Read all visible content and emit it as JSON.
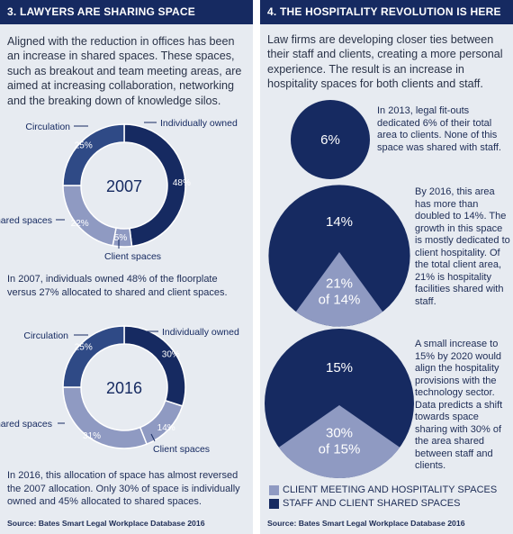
{
  "colors": {
    "navy": "#162a61",
    "mid": "#2f4a86",
    "light": "#8f9ac2",
    "white": "#ffffff"
  },
  "left": {
    "header": "3. LAWYERS ARE SHARING SPACE",
    "intro": "Aligned with the reduction in offices has been an increase in shared spaces. These spaces, such as breakout and team meeting areas, are aimed at increasing collaboration, networking and the breaking down of knowledge silos.",
    "caption_2007": "In 2007, individuals owned 48% of the floorplate versus 27% allocated to shared and client spaces.",
    "caption_2016": "In 2016, this allocation of space has almost reversed the 2007 allocation. Only 30% of space is individually owned and 45% allocated to shared spaces.",
    "source": "Source: Bates Smart Legal Workplace Database 2016"
  },
  "right": {
    "header": "4. THE HOSPITALITY REVOLUTION IS HERE",
    "intro": "Law firms are developing closer ties between their staff and clients, creating a more personal experience. The result is an increase in hospitality spaces for both clients and staff.",
    "text_2013": "In 2013, legal fit-outs dedicated 6% of their total area to clients. None of this space was shared with staff.",
    "text_2016": "By 2016, this area has more than doubled to 14%. The growth in this space is mostly dedicated to client hospitality. Of the total client area, 21% is hospitality facilities shared with staff.",
    "text_2020": "A small increase to 15% by 2020 would align the hospitality provisions with the technology sector. Data predicts a shift towards space sharing with 30% of the area shared between staff and clients.",
    "legend": [
      "CLIENT MEETING AND HOSPITALITY SPACES",
      "STAFF AND CLIENT SHARED SPACES"
    ],
    "source": "Source: Bates Smart Legal Workplace Database 2016"
  },
  "chart_data": [
    {
      "type": "pie",
      "title": "2007",
      "categories": [
        "Individually owned",
        "Client spaces",
        "Shared spaces",
        "Circulation"
      ],
      "values": [
        48,
        5,
        22,
        25
      ],
      "labels": [
        "48%",
        "5%",
        "22%",
        "25%"
      ]
    },
    {
      "type": "pie",
      "title": "2016",
      "categories": [
        "Individually owned",
        "Client spaces",
        "Shared spaces",
        "Circulation"
      ],
      "values": [
        30,
        14,
        31,
        25
      ],
      "labels": [
        "30%",
        "14%",
        "31%",
        "25%"
      ]
    },
    {
      "type": "bar",
      "categories": [
        "2013",
        "2016",
        "2020"
      ],
      "values": [
        6,
        14,
        15
      ],
      "labels": [
        "6%",
        "14%",
        "15%"
      ],
      "shared_share": [
        0,
        21,
        30
      ],
      "shared_labels": [
        "",
        "21% of 14%",
        "30% of 15%"
      ]
    }
  ]
}
